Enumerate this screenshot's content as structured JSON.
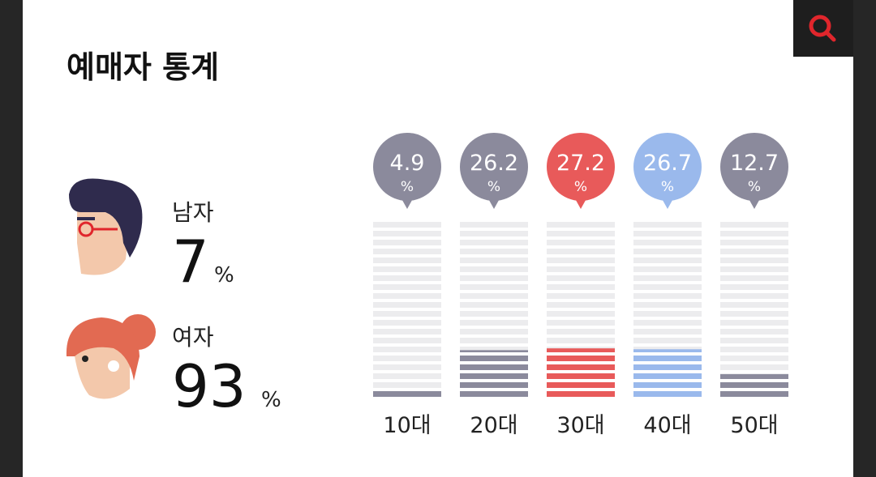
{
  "header": {
    "title": "예매자 통계"
  },
  "gender": [
    {
      "label": "남자",
      "value": 7,
      "unit": "%"
    },
    {
      "label": "여자",
      "value": 93,
      "unit": "%"
    }
  ],
  "chart_data": {
    "type": "bar",
    "categories": [
      "10대",
      "20대",
      "30대",
      "40대",
      "50대"
    ],
    "values": [
      4.9,
      26.2,
      27.2,
      26.7,
      12.7
    ],
    "colors": [
      "#8b8a9c",
      "#8b8a9c",
      "#e85a5a",
      "#9ab9ec",
      "#8b8a9c"
    ],
    "unit": "%",
    "ylim": [
      0,
      100
    ]
  }
}
